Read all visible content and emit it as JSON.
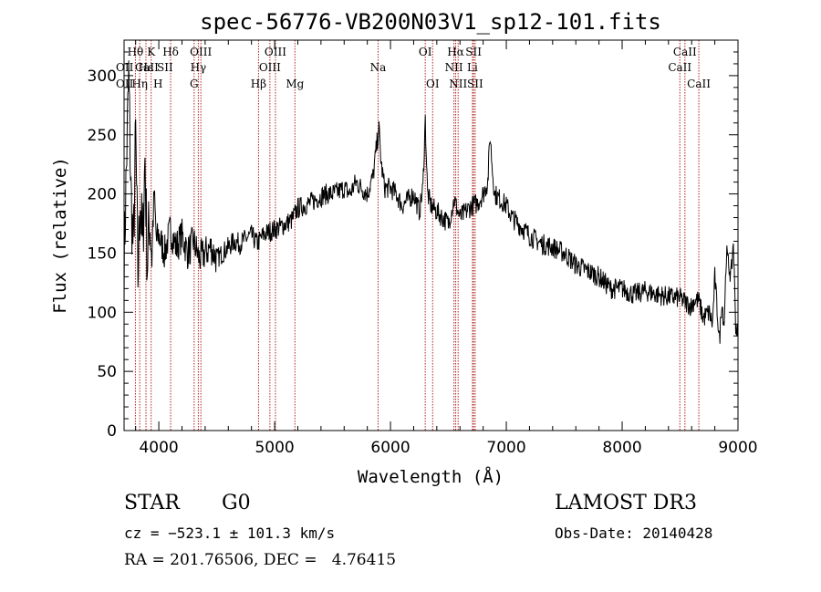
{
  "chart_data": {
    "type": "line",
    "title": "spec-56776-VB200N03V1_sp12-101.fits",
    "xlabel": "Wavelength (Å)",
    "ylabel": "Flux (relative)",
    "xlim": [
      3700,
      9000
    ],
    "ylim": [
      0,
      330
    ],
    "x_ticks": [
      4000,
      5000,
      6000,
      7000,
      8000,
      9000
    ],
    "y_ticks": [
      0,
      50,
      100,
      150,
      200,
      250,
      300
    ],
    "series": [
      {
        "name": "flux",
        "color": "#000000",
        "x": [
          3700,
          3720,
          3740,
          3760,
          3780,
          3800,
          3820,
          3840,
          3860,
          3880,
          3900,
          3920,
          3940,
          3960,
          3980,
          4000,
          4050,
          4100,
          4150,
          4200,
          4250,
          4300,
          4350,
          4400,
          4450,
          4500,
          4550,
          4600,
          4650,
          4700,
          4750,
          4800,
          4850,
          4900,
          4950,
          5000,
          5050,
          5100,
          5150,
          5200,
          5250,
          5300,
          5350,
          5400,
          5450,
          5500,
          5550,
          5600,
          5650,
          5700,
          5750,
          5800,
          5850,
          5880,
          5900,
          5920,
          5950,
          6000,
          6050,
          6100,
          6150,
          6200,
          6250,
          6280,
          6300,
          6320,
          6350,
          6400,
          6450,
          6500,
          6550,
          6600,
          6650,
          6700,
          6750,
          6800,
          6840,
          6860,
          6880,
          6900,
          6950,
          7000,
          7050,
          7100,
          7150,
          7200,
          7300,
          7400,
          7500,
          7600,
          7700,
          7800,
          7900,
          8000,
          8100,
          8200,
          8300,
          8400,
          8500,
          8550,
          8600,
          8620,
          8660,
          8700,
          8750,
          8780,
          8800,
          8840,
          8860,
          8880,
          8900,
          8940,
          8960,
          8980,
          9000
        ],
        "y": [
          140,
          220,
          300,
          200,
          150,
          250,
          130,
          200,
          150,
          230,
          140,
          180,
          150,
          200,
          160,
          165,
          150,
          170,
          155,
          165,
          150,
          160,
          145,
          150,
          155,
          145,
          150,
          155,
          160,
          158,
          162,
          165,
          158,
          165,
          168,
          170,
          172,
          175,
          178,
          188,
          190,
          192,
          195,
          198,
          200,
          200,
          202,
          205,
          200,
          210,
          205,
          200,
          215,
          240,
          255,
          225,
          205,
          205,
          200,
          190,
          195,
          200,
          185,
          205,
          262,
          200,
          190,
          185,
          180,
          175,
          195,
          180,
          185,
          190,
          192,
          200,
          210,
          250,
          220,
          200,
          195,
          190,
          180,
          175,
          170,
          165,
          158,
          155,
          150,
          140,
          135,
          130,
          120,
          120,
          115,
          118,
          115,
          113,
          112,
          108,
          105,
          110,
          110,
          95,
          100,
          90,
          130,
          75,
          110,
          90,
          150,
          130,
          160,
          90,
          80
        ]
      }
    ],
    "lines": [
      {
        "label": "Hθ",
        "wavelength": 3798,
        "row": 0
      },
      {
        "label": "Hη",
        "wavelength": 3835,
        "row": 2
      },
      {
        "label": "K",
        "wavelength": 3934,
        "row": 0
      },
      {
        "label": "Hε",
        "wavelength": 3889,
        "row": 1
      },
      {
        "label": "Hδ",
        "wavelength": 4102,
        "row": 0
      },
      {
        "label": "OIII",
        "wavelength": 4363,
        "row": 0
      },
      {
        "label": "Hγ",
        "wavelength": 4341,
        "row": 1
      },
      {
        "label": "G",
        "wavelength": 4305,
        "row": 2
      },
      {
        "label": "Hβ",
        "wavelength": 4861,
        "row": 2
      },
      {
        "label": "OIII",
        "wavelength": 5007,
        "row": 0
      },
      {
        "label": "OIII",
        "wavelength": 4959,
        "row": 1
      },
      {
        "label": "Mg",
        "wavelength": 5175,
        "row": 2
      },
      {
        "label": "Na",
        "wavelength": 5893,
        "row": 1
      },
      {
        "label": "OI",
        "wavelength": 6300,
        "row": 0
      },
      {
        "label": "OI",
        "wavelength": 6364,
        "row": 2
      },
      {
        "label": "Hα",
        "wavelength": 6563,
        "row": 0
      },
      {
        "label": "NII",
        "wavelength": 6548,
        "row": 1
      },
      {
        "label": "NII",
        "wavelength": 6584,
        "row": 2
      },
      {
        "label": "SII",
        "wavelength": 6717,
        "row": 0
      },
      {
        "label": "Li",
        "wavelength": 6708,
        "row": 1
      },
      {
        "label": "SII",
        "wavelength": 6731,
        "row": 2
      },
      {
        "label": "CaII",
        "wavelength": 8542,
        "row": 0
      },
      {
        "label": "CaII",
        "wavelength": 8498,
        "row": 1
      },
      {
        "label": "CaII",
        "wavelength": 8662,
        "row": 2
      }
    ],
    "edge_labels": [
      {
        "label": "OII",
        "row": 1
      },
      {
        "label": "CaII",
        "row": 1
      },
      {
        "label": "SII",
        "row": 1
      },
      {
        "label": "OII",
        "row": 2
      },
      {
        "label": "H",
        "row": 2
      }
    ],
    "line_color": "#b22222"
  },
  "info": {
    "object_class": "STAR",
    "subclass": "G0",
    "survey": "LAMOST DR3",
    "cz": "cz = −523.1 ± 101.3 km/s",
    "obs_date": "Obs-Date: 20140428",
    "coords": "RA = 201.76506, DEC =   4.76415"
  }
}
